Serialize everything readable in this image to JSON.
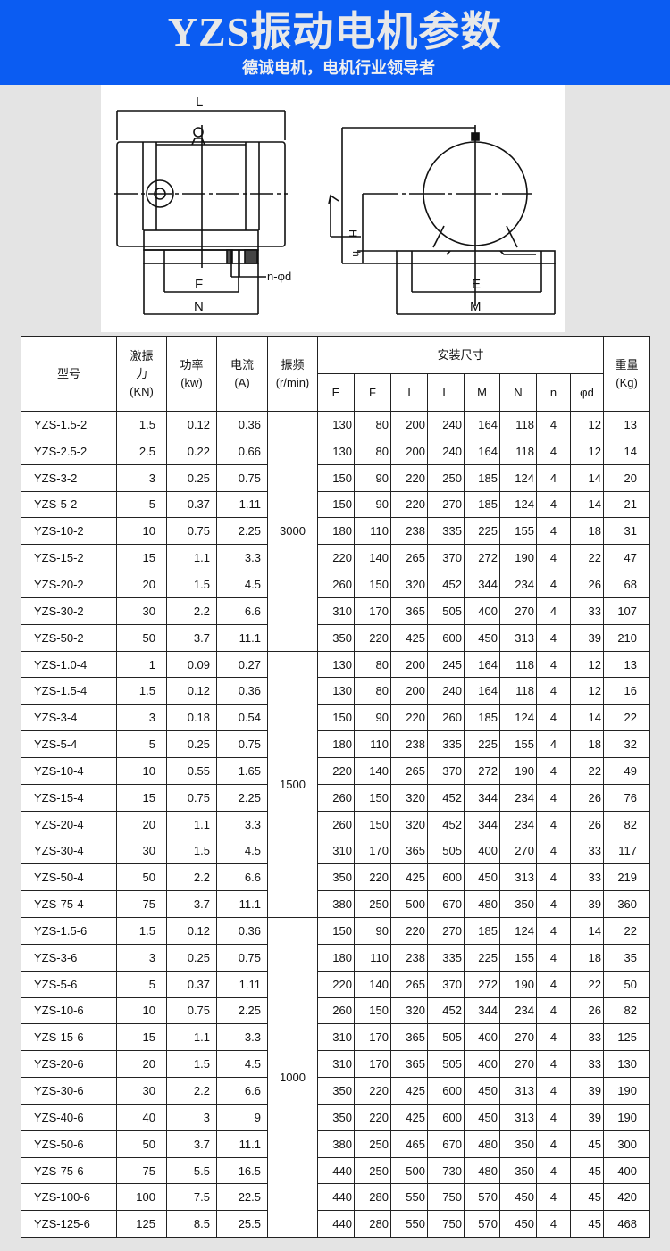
{
  "header": {
    "title": "YZS振动电机参数",
    "subtitle": "德诚电机，电机行业领导者",
    "background_color": "#0b5cf2"
  },
  "diagram": {
    "labels": {
      "L": "L",
      "F": "F",
      "N": "N",
      "nd": "n-φd",
      "E": "E",
      "M": "M",
      "H": "H",
      "h": "h"
    }
  },
  "table": {
    "headers": {
      "model": "型号",
      "force": [
        "激振",
        "力",
        "(KN)"
      ],
      "power": [
        "功率",
        "(kw)"
      ],
      "current": [
        "电流",
        "(A)"
      ],
      "frequency": [
        "振频",
        "(r/min)"
      ],
      "install": "安装尺寸",
      "dims": [
        "E",
        "F",
        "I",
        "L",
        "M",
        "N",
        "n",
        "φd"
      ],
      "weight": [
        "重量",
        "(Kg)"
      ]
    },
    "groups": [
      {
        "frequency": "3000",
        "rows": [
          [
            "YZS-1.5-2",
            "1.5",
            "0.12",
            "0.36",
            "130",
            "80",
            "200",
            "240",
            "164",
            "118",
            "4",
            "12",
            "13"
          ],
          [
            "YZS-2.5-2",
            "2.5",
            "0.22",
            "0.66",
            "130",
            "80",
            "200",
            "240",
            "164",
            "118",
            "4",
            "12",
            "14"
          ],
          [
            "YZS-3-2",
            "3",
            "0.25",
            "0.75",
            "150",
            "90",
            "220",
            "250",
            "185",
            "124",
            "4",
            "14",
            "20"
          ],
          [
            "YZS-5-2",
            "5",
            "0.37",
            "1.11",
            "150",
            "90",
            "220",
            "270",
            "185",
            "124",
            "4",
            "14",
            "21"
          ],
          [
            "YZS-10-2",
            "10",
            "0.75",
            "2.25",
            "180",
            "110",
            "238",
            "335",
            "225",
            "155",
            "4",
            "18",
            "31"
          ],
          [
            "YZS-15-2",
            "15",
            "1.1",
            "3.3",
            "220",
            "140",
            "265",
            "370",
            "272",
            "190",
            "4",
            "22",
            "47"
          ],
          [
            "YZS-20-2",
            "20",
            "1.5",
            "4.5",
            "260",
            "150",
            "320",
            "452",
            "344",
            "234",
            "4",
            "26",
            "68"
          ],
          [
            "YZS-30-2",
            "30",
            "2.2",
            "6.6",
            "310",
            "170",
            "365",
            "505",
            "400",
            "270",
            "4",
            "33",
            "107"
          ],
          [
            "YZS-50-2",
            "50",
            "3.7",
            "11.1",
            "350",
            "220",
            "425",
            "600",
            "450",
            "313",
            "4",
            "39",
            "210"
          ]
        ]
      },
      {
        "frequency": "1500",
        "rows": [
          [
            "YZS-1.0-4",
            "1",
            "0.09",
            "0.27",
            "130",
            "80",
            "200",
            "245",
            "164",
            "118",
            "4",
            "12",
            "13"
          ],
          [
            "YZS-1.5-4",
            "1.5",
            "0.12",
            "0.36",
            "130",
            "80",
            "200",
            "240",
            "164",
            "118",
            "4",
            "12",
            "16"
          ],
          [
            "YZS-3-4",
            "3",
            "0.18",
            "0.54",
            "150",
            "90",
            "220",
            "260",
            "185",
            "124",
            "4",
            "14",
            "22"
          ],
          [
            "YZS-5-4",
            "5",
            "0.25",
            "0.75",
            "180",
            "110",
            "238",
            "335",
            "225",
            "155",
            "4",
            "18",
            "32"
          ],
          [
            "YZS-10-4",
            "10",
            "0.55",
            "1.65",
            "220",
            "140",
            "265",
            "370",
            "272",
            "190",
            "4",
            "22",
            "49"
          ],
          [
            "YZS-15-4",
            "15",
            "0.75",
            "2.25",
            "260",
            "150",
            "320",
            "452",
            "344",
            "234",
            "4",
            "26",
            "76"
          ],
          [
            "YZS-20-4",
            "20",
            "1.1",
            "3.3",
            "260",
            "150",
            "320",
            "452",
            "344",
            "234",
            "4",
            "26",
            "82"
          ],
          [
            "YZS-30-4",
            "30",
            "1.5",
            "4.5",
            "310",
            "170",
            "365",
            "505",
            "400",
            "270",
            "4",
            "33",
            "117"
          ],
          [
            "YZS-50-4",
            "50",
            "2.2",
            "6.6",
            "350",
            "220",
            "425",
            "600",
            "450",
            "313",
            "4",
            "33",
            "219"
          ],
          [
            "YZS-75-4",
            "75",
            "3.7",
            "11.1",
            "380",
            "250",
            "500",
            "670",
            "480",
            "350",
            "4",
            "39",
            "360"
          ]
        ]
      },
      {
        "frequency": "1000",
        "rows": [
          [
            "YZS-1.5-6",
            "1.5",
            "0.12",
            "0.36",
            "150",
            "90",
            "220",
            "270",
            "185",
            "124",
            "4",
            "14",
            "22"
          ],
          [
            "YZS-3-6",
            "3",
            "0.25",
            "0.75",
            "180",
            "110",
            "238",
            "335",
            "225",
            "155",
            "4",
            "18",
            "35"
          ],
          [
            "YZS-5-6",
            "5",
            "0.37",
            "1.11",
            "220",
            "140",
            "265",
            "370",
            "272",
            "190",
            "4",
            "22",
            "50"
          ],
          [
            "YZS-10-6",
            "10",
            "0.75",
            "2.25",
            "260",
            "150",
            "320",
            "452",
            "344",
            "234",
            "4",
            "26",
            "82"
          ],
          [
            "YZS-15-6",
            "15",
            "1.1",
            "3.3",
            "310",
            "170",
            "365",
            "505",
            "400",
            "270",
            "4",
            "33",
            "125"
          ],
          [
            "YZS-20-6",
            "20",
            "1.5",
            "4.5",
            "310",
            "170",
            "365",
            "505",
            "400",
            "270",
            "4",
            "33",
            "130"
          ],
          [
            "YZS-30-6",
            "30",
            "2.2",
            "6.6",
            "350",
            "220",
            "425",
            "600",
            "450",
            "313",
            "4",
            "39",
            "190"
          ],
          [
            "YZS-40-6",
            "40",
            "3",
            "9",
            "350",
            "220",
            "425",
            "600",
            "450",
            "313",
            "4",
            "39",
            "190"
          ],
          [
            "YZS-50-6",
            "50",
            "3.7",
            "11.1",
            "380",
            "250",
            "465",
            "670",
            "480",
            "350",
            "4",
            "45",
            "300"
          ],
          [
            "YZS-75-6",
            "75",
            "5.5",
            "16.5",
            "440",
            "250",
            "500",
            "730",
            "480",
            "350",
            "4",
            "45",
            "400"
          ],
          [
            "YZS-100-6",
            "100",
            "7.5",
            "22.5",
            "440",
            "280",
            "550",
            "750",
            "570",
            "450",
            "4",
            "45",
            "420"
          ],
          [
            "YZS-125-6",
            "125",
            "8.5",
            "25.5",
            "440",
            "280",
            "550",
            "750",
            "570",
            "450",
            "4",
            "45",
            "468"
          ]
        ]
      }
    ]
  }
}
